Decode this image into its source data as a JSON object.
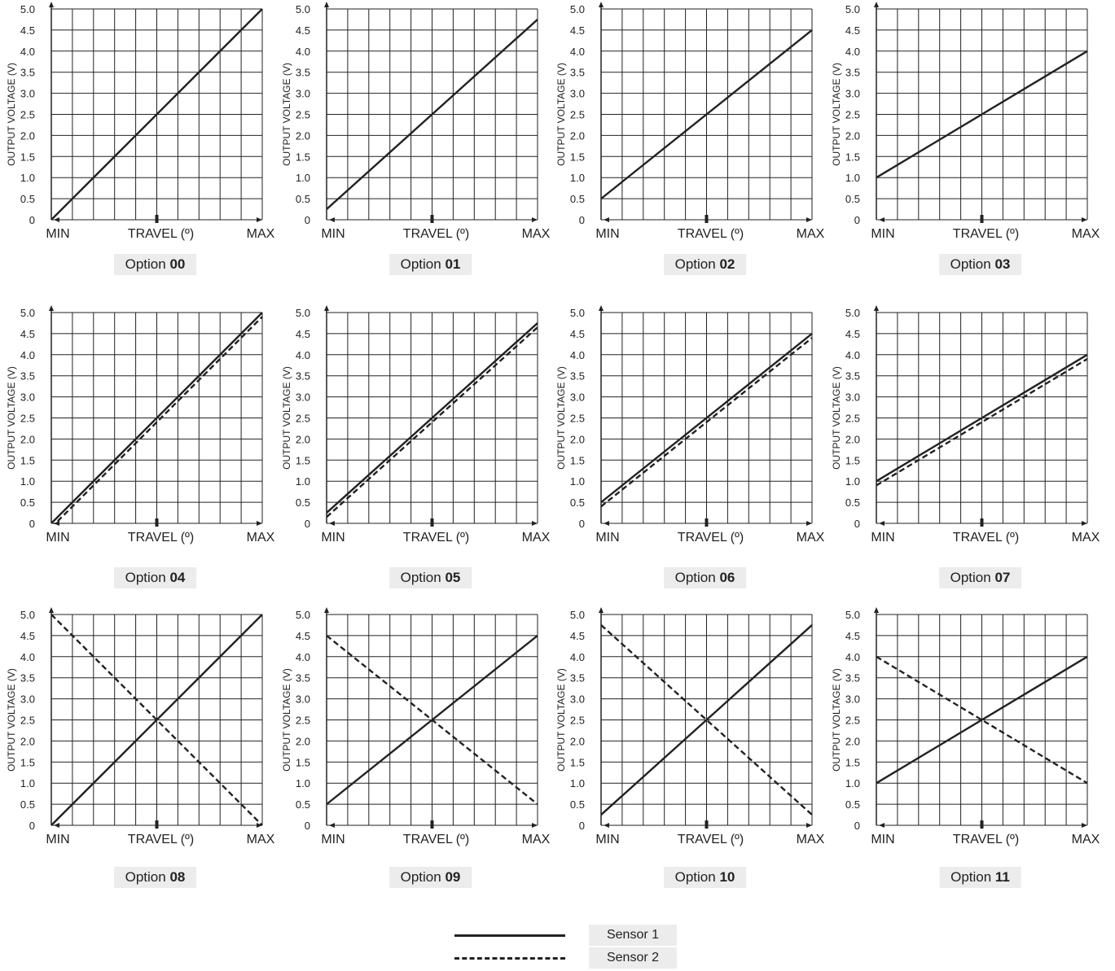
{
  "legend": {
    "sensor1": "Sensor 1",
    "sensor2": "Sensor 2"
  },
  "colors": {
    "line": "#222222",
    "grid": "#222222",
    "label_bg": "#ececec"
  },
  "chart_data": [
    {
      "type": "line",
      "option_prefix": "Option",
      "option_number": "00",
      "xlabel": "TRAVEL (º)",
      "ylabel": "OUTPUT VOLTAGE (V)",
      "x_tick_labels": [
        "MIN",
        "MAX"
      ],
      "y_ticks": [
        "0",
        "0.5",
        "1.0",
        "1.5",
        "2.0",
        "2.5",
        "3.0",
        "3.5",
        "4.0",
        "4.5",
        "5.0"
      ],
      "xlim": [
        0,
        1
      ],
      "ylim": [
        0,
        5
      ],
      "grid": true,
      "series": [
        {
          "name": "Sensor 1",
          "x": [
            0,
            1
          ],
          "y": [
            0,
            5
          ]
        }
      ]
    },
    {
      "type": "line",
      "option_prefix": "Option",
      "option_number": "01",
      "xlabel": "TRAVEL (º)",
      "ylabel": "OUTPUT VOLTAGE (V)",
      "x_tick_labels": [
        "MIN",
        "MAX"
      ],
      "y_ticks": [
        "0",
        "0.5",
        "1.0",
        "1.5",
        "2.0",
        "2.5",
        "3.0",
        "3.5",
        "4.0",
        "4.5",
        "5.0"
      ],
      "xlim": [
        0,
        1
      ],
      "ylim": [
        0,
        5
      ],
      "grid": true,
      "series": [
        {
          "name": "Sensor 1",
          "x": [
            0,
            1
          ],
          "y": [
            0.25,
            4.75
          ]
        }
      ]
    },
    {
      "type": "line",
      "option_prefix": "Option",
      "option_number": "02",
      "xlabel": "TRAVEL (º)",
      "ylabel": "OUTPUT VOLTAGE (V)",
      "x_tick_labels": [
        "MIN",
        "MAX"
      ],
      "y_ticks": [
        "0",
        "0.5",
        "1.0",
        "1.5",
        "2.0",
        "2.5",
        "3.0",
        "3.5",
        "4.0",
        "4.5",
        "5.0"
      ],
      "xlim": [
        0,
        1
      ],
      "ylim": [
        0,
        5
      ],
      "grid": true,
      "series": [
        {
          "name": "Sensor 1",
          "x": [
            0,
            1
          ],
          "y": [
            0.5,
            4.5
          ]
        }
      ]
    },
    {
      "type": "line",
      "option_prefix": "Option",
      "option_number": "03",
      "xlabel": "TRAVEL (º)",
      "ylabel": "OUTPUT VOLTAGE (V)",
      "x_tick_labels": [
        "MIN",
        "MAX"
      ],
      "y_ticks": [
        "0",
        "0.5",
        "1.0",
        "1.5",
        "2.0",
        "2.5",
        "3.0",
        "3.5",
        "4.0",
        "4.5",
        "5.0"
      ],
      "xlim": [
        0,
        1
      ],
      "ylim": [
        0,
        5
      ],
      "grid": true,
      "series": [
        {
          "name": "Sensor 1",
          "x": [
            0,
            1
          ],
          "y": [
            1.0,
            4.0
          ]
        }
      ]
    },
    {
      "type": "line",
      "option_prefix": "Option",
      "option_number": "04",
      "xlabel": "TRAVEL (º)",
      "ylabel": "OUTPUT VOLTAGE (V)",
      "x_tick_labels": [
        "MIN",
        "MAX"
      ],
      "y_ticks": [
        "0",
        "0.5",
        "1.0",
        "1.5",
        "2.0",
        "2.5",
        "3.0",
        "3.5",
        "4.0",
        "4.5",
        "5.0"
      ],
      "xlim": [
        0,
        1
      ],
      "ylim": [
        0,
        5
      ],
      "grid": true,
      "series": [
        {
          "name": "Sensor 1",
          "x": [
            0,
            1
          ],
          "y": [
            0,
            5
          ]
        },
        {
          "name": "Sensor 2",
          "x": [
            0,
            1
          ],
          "y": [
            -0.1,
            4.9
          ]
        }
      ]
    },
    {
      "type": "line",
      "option_prefix": "Option",
      "option_number": "05",
      "xlabel": "TRAVEL (º)",
      "ylabel": "OUTPUT VOLTAGE (V)",
      "x_tick_labels": [
        "MIN",
        "MAX"
      ],
      "y_ticks": [
        "0",
        "0.5",
        "1.0",
        "1.5",
        "2.0",
        "2.5",
        "3.0",
        "3.5",
        "4.0",
        "4.5",
        "5.0"
      ],
      "xlim": [
        0,
        1
      ],
      "ylim": [
        0,
        5
      ],
      "grid": true,
      "series": [
        {
          "name": "Sensor 1",
          "x": [
            0,
            1
          ],
          "y": [
            0.25,
            4.75
          ]
        },
        {
          "name": "Sensor 2",
          "x": [
            0,
            1
          ],
          "y": [
            0.15,
            4.65
          ]
        }
      ]
    },
    {
      "type": "line",
      "option_prefix": "Option",
      "option_number": "06",
      "xlabel": "TRAVEL (º)",
      "ylabel": "OUTPUT VOLTAGE (V)",
      "x_tick_labels": [
        "MIN",
        "MAX"
      ],
      "y_ticks": [
        "0",
        "0.5",
        "1.0",
        "1.5",
        "2.0",
        "2.5",
        "3.0",
        "3.5",
        "4.0",
        "4.5",
        "5.0"
      ],
      "xlim": [
        0,
        1
      ],
      "ylim": [
        0,
        5
      ],
      "grid": true,
      "series": [
        {
          "name": "Sensor 1",
          "x": [
            0,
            1
          ],
          "y": [
            0.5,
            4.5
          ]
        },
        {
          "name": "Sensor 2",
          "x": [
            0,
            1
          ],
          "y": [
            0.4,
            4.4
          ]
        }
      ]
    },
    {
      "type": "line",
      "option_prefix": "Option",
      "option_number": "07",
      "xlabel": "TRAVEL (º)",
      "ylabel": "OUTPUT VOLTAGE (V)",
      "x_tick_labels": [
        "MIN",
        "MAX"
      ],
      "y_ticks": [
        "0",
        "0.5",
        "1.0",
        "1.5",
        "2.0",
        "2.5",
        "3.0",
        "3.5",
        "4.0",
        "4.5",
        "5.0"
      ],
      "xlim": [
        0,
        1
      ],
      "ylim": [
        0,
        5
      ],
      "grid": true,
      "series": [
        {
          "name": "Sensor 1",
          "x": [
            0,
            1
          ],
          "y": [
            1.0,
            4.0
          ]
        },
        {
          "name": "Sensor 2",
          "x": [
            0,
            1
          ],
          "y": [
            0.9,
            3.9
          ]
        }
      ]
    },
    {
      "type": "line",
      "option_prefix": "Option",
      "option_number": "08",
      "xlabel": "TRAVEL (º)",
      "ylabel": "OUTPUT VOLTAGE (V)",
      "x_tick_labels": [
        "MIN",
        "MAX"
      ],
      "y_ticks": [
        "0",
        "0.5",
        "1.0",
        "1.5",
        "2.0",
        "2.5",
        "3.0",
        "3.5",
        "4.0",
        "4.5",
        "5.0"
      ],
      "xlim": [
        0,
        1
      ],
      "ylim": [
        0,
        5
      ],
      "grid": true,
      "series": [
        {
          "name": "Sensor 1",
          "x": [
            0,
            1
          ],
          "y": [
            0,
            5
          ]
        },
        {
          "name": "Sensor 2",
          "x": [
            0,
            1
          ],
          "y": [
            5,
            0
          ]
        }
      ]
    },
    {
      "type": "line",
      "option_prefix": "Option",
      "option_number": "09",
      "xlabel": "TRAVEL (º)",
      "ylabel": "OUTPUT VOLTAGE (V)",
      "x_tick_labels": [
        "MIN",
        "MAX"
      ],
      "y_ticks": [
        "0",
        "0.5",
        "1.0",
        "1.5",
        "2.0",
        "2.5",
        "3.0",
        "3.5",
        "4.0",
        "4.5",
        "5.0"
      ],
      "xlim": [
        0,
        1
      ],
      "ylim": [
        0,
        5
      ],
      "grid": true,
      "series": [
        {
          "name": "Sensor 1",
          "x": [
            0,
            1
          ],
          "y": [
            0.5,
            4.5
          ]
        },
        {
          "name": "Sensor 2",
          "x": [
            0,
            1
          ],
          "y": [
            4.5,
            0.5
          ]
        }
      ]
    },
    {
      "type": "line",
      "option_prefix": "Option",
      "option_number": "10",
      "xlabel": "TRAVEL (º)",
      "ylabel": "OUTPUT VOLTAGE (V)",
      "x_tick_labels": [
        "MIN",
        "MAX"
      ],
      "y_ticks": [
        "0",
        "0.5",
        "1.0",
        "1.5",
        "2.0",
        "2.5",
        "3.0",
        "3.5",
        "4.0",
        "4.5",
        "5.0"
      ],
      "xlim": [
        0,
        1
      ],
      "ylim": [
        0,
        5
      ],
      "grid": true,
      "series": [
        {
          "name": "Sensor 1",
          "x": [
            0,
            1
          ],
          "y": [
            0.25,
            4.75
          ]
        },
        {
          "name": "Sensor 2",
          "x": [
            0,
            1
          ],
          "y": [
            4.75,
            0.25
          ]
        }
      ]
    },
    {
      "type": "line",
      "option_prefix": "Option",
      "option_number": "11",
      "xlabel": "TRAVEL (º)",
      "ylabel": "OUTPUT VOLTAGE (V)",
      "x_tick_labels": [
        "MIN",
        "MAX"
      ],
      "y_ticks": [
        "0",
        "0.5",
        "1.0",
        "1.5",
        "2.0",
        "2.5",
        "3.0",
        "3.5",
        "4.0",
        "4.5",
        "5.0"
      ],
      "xlim": [
        0,
        1
      ],
      "ylim": [
        0,
        5
      ],
      "grid": true,
      "series": [
        {
          "name": "Sensor 1",
          "x": [
            0,
            1
          ],
          "y": [
            1.0,
            4.0
          ]
        },
        {
          "name": "Sensor 2",
          "x": [
            0,
            1
          ],
          "y": [
            4.0,
            1.0
          ]
        }
      ]
    }
  ]
}
